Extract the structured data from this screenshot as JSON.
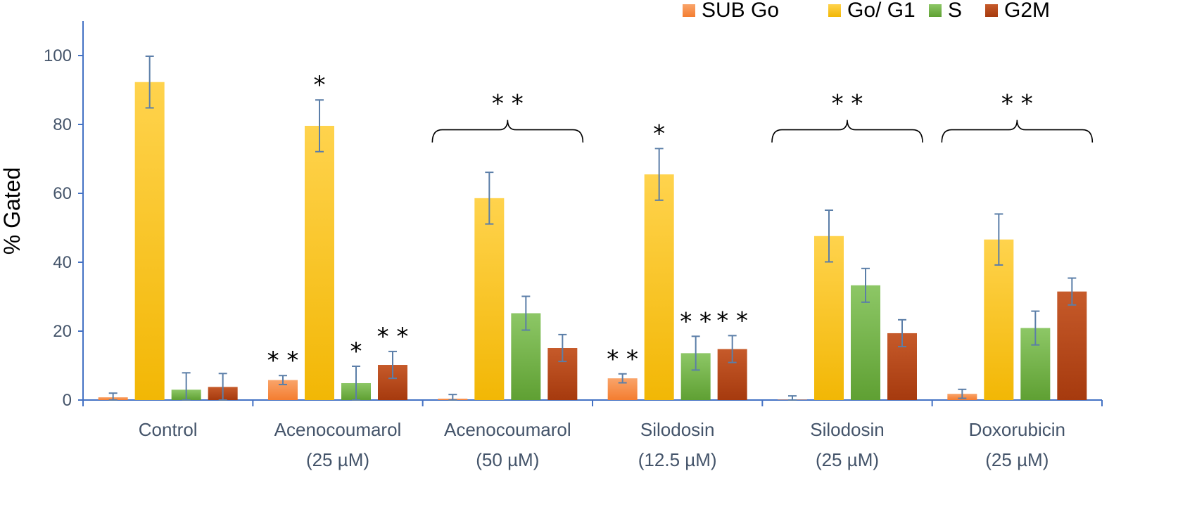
{
  "chart_data": {
    "type": "bar",
    "ylabel": "% Gated",
    "xlabel": "",
    "ylim": [
      0,
      110
    ],
    "yticks": [
      0,
      20,
      40,
      60,
      80,
      100
    ],
    "grid": false,
    "legend_position": "top-right",
    "categories": [
      {
        "line1": "Control",
        "line2": ""
      },
      {
        "line1": "Acenocoumarol",
        "line2": "(25 µM)"
      },
      {
        "line1": "Acenocoumarol",
        "line2": "(50 µM)"
      },
      {
        "line1": "Silodosin",
        "line2": "(12.5 µM)"
      },
      {
        "line1": "Silodosin",
        "line2": "(25 µM)"
      },
      {
        "line1": "Doxorubicin",
        "line2": "(25 µM)"
      }
    ],
    "series": [
      {
        "name": "SUB Go",
        "color": "#F47D30",
        "color_light": "#F9A46A",
        "values": [
          0.8,
          5.8,
          0.4,
          6.3,
          0.1,
          1.8
        ],
        "errors": [
          1.2,
          1.3,
          1.2,
          1.3,
          1.1,
          1.3
        ]
      },
      {
        "name": "Go/ G1",
        "color": "#F2B705",
        "color_light": "#FFD34D",
        "values": [
          92.3,
          79.6,
          58.6,
          65.5,
          47.6,
          46.6
        ],
        "errors": [
          7.5,
          7.5,
          7.5,
          7.5,
          7.5,
          7.4
        ]
      },
      {
        "name": "S",
        "color": "#5FA033",
        "color_light": "#8DC766",
        "values": [
          3.0,
          4.9,
          25.2,
          13.6,
          33.3,
          20.9
        ],
        "errors": [
          4.9,
          4.9,
          4.9,
          4.9,
          4.9,
          4.9
        ]
      },
      {
        "name": "G2M",
        "color": "#A63A0E",
        "color_light": "#C65A2A",
        "values": [
          3.8,
          10.2,
          15.1,
          14.8,
          19.4,
          31.5
        ],
        "errors": [
          3.9,
          3.9,
          3.9,
          3.9,
          3.9,
          3.9
        ]
      }
    ],
    "annotations": [
      {
        "group": 1,
        "series": 0,
        "text": "**"
      },
      {
        "group": 1,
        "series": 1,
        "text": "*"
      },
      {
        "group": 1,
        "series": 2,
        "text": "*"
      },
      {
        "group": 1,
        "series": 3,
        "text": "**"
      },
      {
        "group": 3,
        "series": 0,
        "text": "**"
      },
      {
        "group": 3,
        "series": 1,
        "text": "*"
      },
      {
        "group": 3,
        "series": 2,
        "text": "**"
      },
      {
        "group": 3,
        "series": 3,
        "text": "**"
      }
    ],
    "brackets": [
      {
        "group": 2,
        "text": "**",
        "value": 76
      },
      {
        "group": 4,
        "text": "**",
        "value": 76
      },
      {
        "group": 5,
        "text": "**",
        "value": 76
      }
    ]
  }
}
